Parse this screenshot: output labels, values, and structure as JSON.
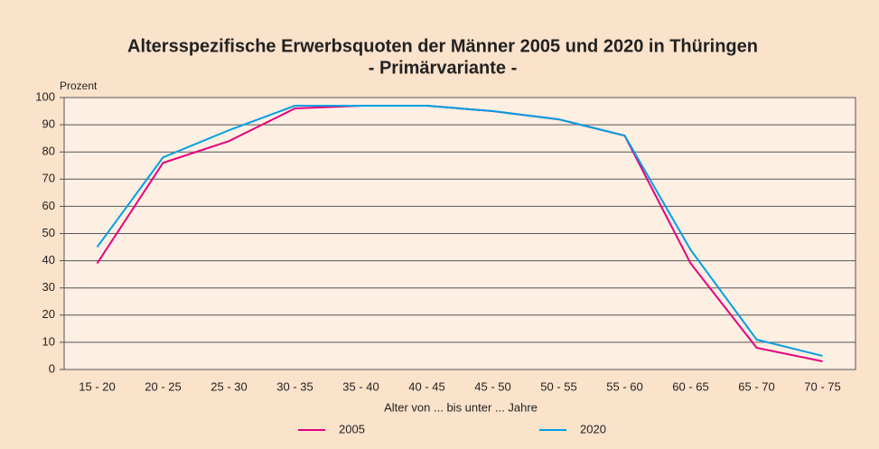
{
  "chart_data": {
    "type": "line",
    "title": "Altersspezifische Erwerbsquoten der Männer 2005 und 2020 in Thüringen",
    "subtitle": "- Primärvariante -",
    "y_label": "Prozent",
    "x_label": "Alter von ... bis unter ... Jahre",
    "categories": [
      "15 - 20",
      "20 - 25",
      "25 - 30",
      "30 - 35",
      "35 - 40",
      "40 - 45",
      "45 - 50",
      "50 - 55",
      "55 - 60",
      "60 - 65",
      "65 - 70",
      "70 - 75"
    ],
    "series": [
      {
        "name": "2005",
        "color": "#e5007d",
        "values": [
          39,
          76,
          84,
          96,
          97,
          97,
          95,
          92,
          86,
          39,
          8,
          3
        ]
      },
      {
        "name": "2020",
        "color": "#009fe3",
        "values": [
          45,
          78,
          88,
          97,
          97,
          97,
          95,
          92,
          86,
          44,
          11,
          5
        ]
      }
    ],
    "ylim": [
      0,
      100
    ],
    "yticks": [
      0,
      10,
      20,
      30,
      40,
      50,
      60,
      70,
      80,
      90,
      100
    ],
    "grid": true
  }
}
